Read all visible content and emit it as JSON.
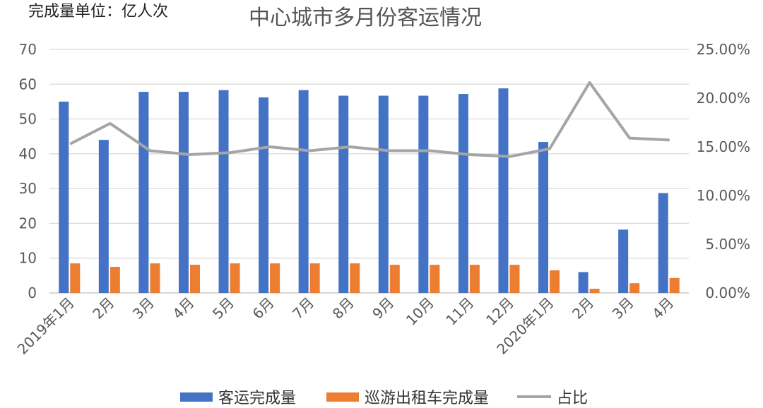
{
  "chart_data": {
    "type": "bar",
    "unit_label": "完成量单位：亿人次",
    "title": "中心城市多月份客运情况",
    "categories": [
      "2019年1月",
      "2月",
      "3月",
      "4月",
      "5月",
      "6月",
      "7月",
      "8月",
      "9月",
      "10月",
      "11月",
      "12月",
      "2020年1月",
      "2月",
      "3月",
      "4月"
    ],
    "series": [
      {
        "name": "客运完成量",
        "type": "bar",
        "axis": "left",
        "color": "#4472C4",
        "values": [
          55,
          44,
          57.8,
          57.8,
          58.3,
          56.2,
          58.3,
          56.7,
          56.7,
          56.7,
          57.2,
          58.8,
          43.4,
          6,
          18.2,
          28.7
        ]
      },
      {
        "name": "巡游出租车完成量",
        "type": "bar",
        "axis": "left",
        "color": "#ED7D31",
        "values": [
          8.5,
          7.5,
          8.5,
          8.1,
          8.5,
          8.5,
          8.5,
          8.5,
          8.1,
          8.1,
          8.1,
          8.1,
          6.5,
          1.2,
          2.8,
          4.3
        ]
      },
      {
        "name": "占比",
        "type": "line",
        "axis": "right",
        "color": "#A5A5A5",
        "values": [
          15.3,
          17.4,
          14.6,
          14.2,
          14.4,
          15.0,
          14.6,
          15.0,
          14.6,
          14.6,
          14.2,
          14.0,
          14.8,
          21.6,
          15.9,
          15.7
        ]
      }
    ],
    "y_left": {
      "min": 0,
      "max": 70,
      "ticks": [
        "0",
        "10",
        "20",
        "30",
        "40",
        "50",
        "60",
        "70"
      ]
    },
    "y_right": {
      "min": 0,
      "max": 25,
      "ticks": [
        "0.00%",
        "5.00%",
        "10.00%",
        "15.00%",
        "20.00%",
        "25.00%"
      ]
    },
    "grid": true,
    "legend_position": "bottom"
  }
}
